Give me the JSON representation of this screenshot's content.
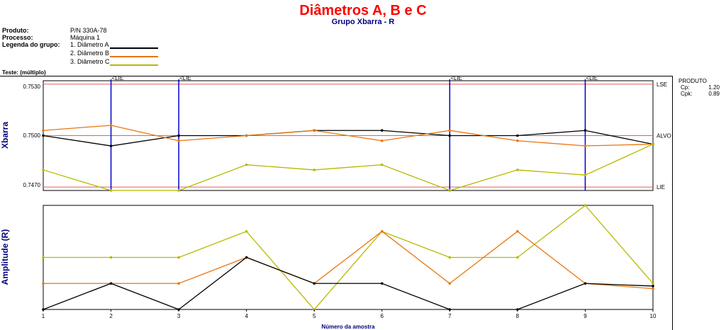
{
  "header": {
    "title": "Diâmetros A, B e C",
    "subtitle": "Grupo Xbarra - R"
  },
  "info": {
    "product_label": "Produto:",
    "product_value": "P/N 330A-78",
    "process_label": "Processo:",
    "process_value": "Máquina 1",
    "legend_label": "Legenda do grupo:",
    "legend_items": [
      "1. Diâmetro A",
      "2. Diâmetro B",
      "3. Diâmetro C"
    ]
  },
  "test_label": "Teste: (múltiplo)",
  "side_panel": {
    "title": "PRODUTO",
    "cp_label": "Cp:",
    "cp_value": "1.20",
    "cpk_label": "Cpk:",
    "cpk_value": "0.89"
  },
  "colors": {
    "series_a": "#000000",
    "series_b": "#e87511",
    "series_c": "#b8b800",
    "limit_line": "#e06060",
    "lie_marker": "#0000cc",
    "axis_title": "#000080",
    "title": "#ff0000"
  },
  "chart_data": [
    {
      "type": "line",
      "ylabel": "Xbarra",
      "ylim": [
        0.7468,
        0.7532
      ],
      "y_ticks": [
        "0.7530",
        "0.7500",
        "0.7470"
      ],
      "x": [
        1,
        2,
        3,
        4,
        5,
        6,
        7,
        8,
        9,
        10
      ],
      "grid": false,
      "reference_lines": [
        {
          "label": "LSE",
          "value": 0.753
        },
        {
          "label": "ALVO",
          "value": 0.75
        },
        {
          "label": "LIE",
          "value": 0.747
        }
      ],
      "lie_markers": {
        "label": "<LIE",
        "x": [
          2,
          3,
          7,
          9
        ]
      },
      "series": [
        {
          "name": "1. Diâmetro A",
          "values": [
            0.75,
            0.7494,
            0.75,
            0.75,
            0.7503,
            0.7503,
            0.75,
            0.75,
            0.7503,
            0.7495
          ]
        },
        {
          "name": "2. Diâmetro B",
          "values": [
            0.7503,
            0.7506,
            0.7497,
            0.75,
            0.7503,
            0.7497,
            0.7503,
            0.7497,
            0.7494,
            0.7495
          ]
        },
        {
          "name": "3. Diâmetro C",
          "values": [
            0.748,
            0.7467,
            0.7467,
            0.7483,
            0.748,
            0.7483,
            0.7467,
            0.748,
            0.7477,
            0.7495
          ]
        }
      ]
    },
    {
      "type": "line",
      "ylabel": "Amplitude (R)",
      "xlabel": "Número da amostra",
      "ylim": [
        0,
        4
      ],
      "x": [
        1,
        2,
        3,
        4,
        5,
        6,
        7,
        8,
        9,
        10
      ],
      "x_ticks": [
        "1",
        "2",
        "3",
        "4",
        "5",
        "6",
        "7",
        "8",
        "9",
        "10"
      ],
      "grid": false,
      "series": [
        {
          "name": "1. Diâmetro A",
          "values": [
            0,
            1,
            0,
            2,
            1,
            1,
            0,
            0,
            1,
            0.9
          ]
        },
        {
          "name": "2. Diâmetro B",
          "values": [
            1,
            1,
            1,
            2,
            1,
            3,
            1,
            3,
            1,
            0.8
          ]
        },
        {
          "name": "3. Diâmetro C",
          "values": [
            2,
            2,
            2,
            3,
            0,
            3,
            2,
            2,
            4,
            1
          ]
        }
      ]
    }
  ]
}
